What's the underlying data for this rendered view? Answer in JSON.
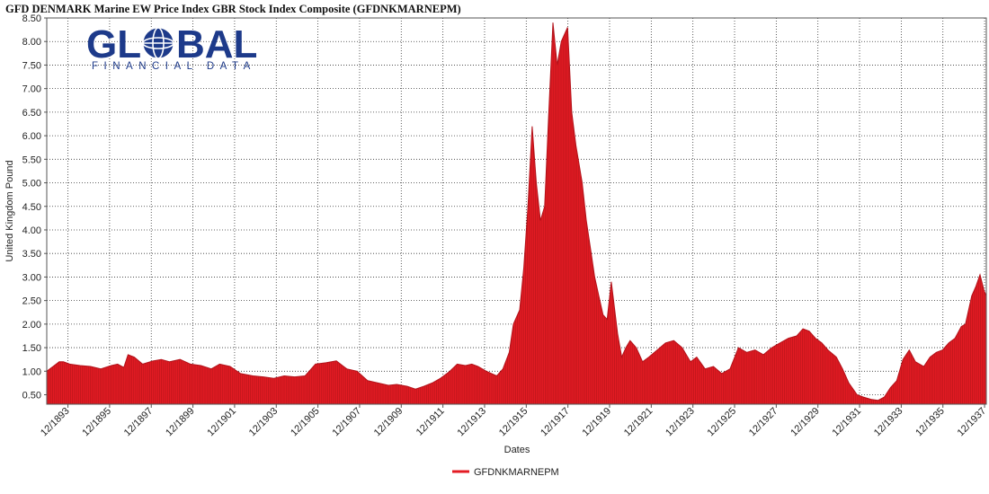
{
  "chart_data": {
    "type": "area",
    "title": "GFD DENMARK Marine EW Price Index GBR Stock Index Composite (GFDNKMARNEPM)",
    "xlabel": "Dates",
    "ylabel": "United Kingdom Pound",
    "ylim": [
      0.3,
      8.5
    ],
    "xlim": [
      1892.9,
      1938.0
    ],
    "y_ticks": [
      "0.50",
      "1.00",
      "1.50",
      "2.00",
      "2.50",
      "3.00",
      "3.50",
      "4.00",
      "4.50",
      "5.00",
      "5.50",
      "6.00",
      "6.50",
      "7.00",
      "7.50",
      "8.00",
      "8.50"
    ],
    "x_ticks": [
      "12/1893",
      "12/1895",
      "12/1897",
      "12/1899",
      "12/1901",
      "12/1903",
      "12/1905",
      "12/1907",
      "12/1909",
      "12/1911",
      "12/1913",
      "12/1915",
      "12/1917",
      "12/1919",
      "12/1921",
      "12/1923",
      "12/1925",
      "12/1927",
      "12/1929",
      "12/1931",
      "12/1933",
      "12/1935",
      "12/1937"
    ],
    "grid": true,
    "legend_position": "bottom-center",
    "series": [
      {
        "name": "GFDNKMARNEPM",
        "color": "#e31b23",
        "x": [
          1892.9,
          1893.2,
          1893.5,
          1893.7,
          1894.0,
          1894.5,
          1895.0,
          1895.5,
          1896.0,
          1896.3,
          1896.6,
          1896.8,
          1897.1,
          1897.5,
          1898.0,
          1898.4,
          1898.8,
          1899.3,
          1899.8,
          1900.3,
          1900.8,
          1901.2,
          1901.7,
          1902.2,
          1902.8,
          1903.3,
          1903.8,
          1904.3,
          1904.8,
          1905.3,
          1905.8,
          1906.3,
          1906.8,
          1907.3,
          1907.8,
          1908.3,
          1908.8,
          1909.3,
          1909.7,
          1910.2,
          1910.6,
          1911.0,
          1911.4,
          1911.8,
          1912.2,
          1912.6,
          1913.0,
          1913.3,
          1913.6,
          1914.0,
          1914.5,
          1914.8,
          1915.1,
          1915.3,
          1915.6,
          1915.8,
          1916.0,
          1916.2,
          1916.4,
          1916.6,
          1916.8,
          1917.0,
          1917.2,
          1917.4,
          1917.6,
          1917.9,
          1918.1,
          1918.3,
          1918.6,
          1918.8,
          1919.0,
          1919.2,
          1919.4,
          1919.6,
          1919.8,
          1920.0,
          1920.3,
          1920.5,
          1920.7,
          1920.9,
          1921.2,
          1921.5,
          1921.8,
          1922.2,
          1922.6,
          1923.0,
          1923.4,
          1923.8,
          1924.1,
          1924.5,
          1924.9,
          1925.3,
          1925.7,
          1926.1,
          1926.5,
          1926.9,
          1927.3,
          1927.7,
          1928.1,
          1928.5,
          1928.9,
          1929.2,
          1929.5,
          1929.8,
          1930.1,
          1930.4,
          1930.8,
          1931.1,
          1931.4,
          1931.8,
          1932.1,
          1932.5,
          1932.8,
          1933.1,
          1933.4,
          1933.7,
          1934.0,
          1934.3,
          1934.6,
          1935.0,
          1935.3,
          1935.6,
          1935.9,
          1936.2,
          1936.5,
          1936.8,
          1937.0,
          1937.3,
          1937.5,
          1937.7,
          1937.9,
          1938.0
        ],
        "values": [
          1.0,
          1.1,
          1.2,
          1.2,
          1.15,
          1.12,
          1.1,
          1.05,
          1.12,
          1.15,
          1.08,
          1.35,
          1.3,
          1.15,
          1.22,
          1.25,
          1.2,
          1.25,
          1.15,
          1.12,
          1.05,
          1.15,
          1.1,
          0.95,
          0.9,
          0.88,
          0.85,
          0.9,
          0.88,
          0.9,
          1.15,
          1.18,
          1.22,
          1.05,
          1.0,
          0.8,
          0.75,
          0.7,
          0.72,
          0.68,
          0.62,
          0.68,
          0.75,
          0.85,
          0.98,
          1.15,
          1.12,
          1.15,
          1.1,
          1.0,
          0.9,
          1.05,
          1.4,
          2.0,
          2.3,
          3.2,
          4.5,
          6.2,
          5.0,
          4.2,
          4.5,
          6.5,
          8.4,
          7.5,
          8.0,
          8.3,
          6.5,
          5.8,
          5.0,
          4.2,
          3.6,
          3.0,
          2.6,
          2.2,
          2.1,
          2.9,
          1.8,
          1.3,
          1.5,
          1.65,
          1.5,
          1.2,
          1.3,
          1.45,
          1.6,
          1.65,
          1.5,
          1.2,
          1.3,
          1.05,
          1.1,
          0.95,
          1.05,
          1.5,
          1.4,
          1.45,
          1.35,
          1.5,
          1.6,
          1.7,
          1.75,
          1.9,
          1.85,
          1.7,
          1.6,
          1.45,
          1.3,
          1.05,
          0.75,
          0.5,
          0.45,
          0.4,
          0.38,
          0.45,
          0.65,
          0.8,
          1.25,
          1.45,
          1.2,
          1.1,
          1.3,
          1.4,
          1.45,
          1.6,
          1.7,
          1.95,
          2.0,
          2.6,
          2.8,
          3.05,
          2.7,
          2.6
        ]
      }
    ]
  },
  "branding": {
    "logo_word": "GL",
    "logo_word_rest": "BAL",
    "logo_tagline": "FINANCIAL DATA"
  }
}
